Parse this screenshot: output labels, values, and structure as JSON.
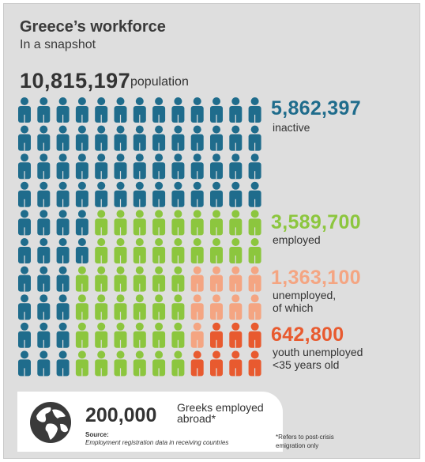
{
  "header": {
    "title": "Greece’s workforce",
    "subtitle": "In a snapshot"
  },
  "population": {
    "value": "10,815,197",
    "label": "population"
  },
  "stats": [
    {
      "value": "5,862,397",
      "label_lines": [
        "inactive"
      ],
      "color": "#1f6c8c"
    },
    {
      "value": "3,589,700",
      "label_lines": [
        "employed"
      ],
      "color": "#8cc63e"
    },
    {
      "value": "1,363,100",
      "label_lines": [
        "unemployed,",
        "of which"
      ],
      "color": "#f4a582"
    },
    {
      "value": "642,800",
      "label_lines": [
        "youth unemployed",
        "<35 years old"
      ],
      "color": "#e85a2f"
    }
  ],
  "pictogram": {
    "rows": 10,
    "columns": 13,
    "legend": {
      "B": "inactive",
      "G": "employed",
      "P": "unemployed",
      "R": "youth unemployed"
    },
    "grid": [
      "BBBBBBBBBBBBB",
      "BBBBBBBBBBBBB",
      "BBBBBBBBBBBBB",
      "BBBBBBBBBBBBB",
      "BBBBGGGGGGGGG",
      "BBBBGGGGGGGGG",
      "BBBGGGGGGPPPP",
      "BBBGGGGGGPPPP",
      "BBBGGGGGGPRRR",
      "BBBGGGGGGRRRR"
    ],
    "colors": {
      "B": "#1f6c8c",
      "G": "#8cc63e",
      "P": "#f4a582",
      "R": "#e85a2f"
    }
  },
  "abroad": {
    "value": "200,000",
    "label_line1": "Greeks employed",
    "label_line2": "abroad*",
    "source_title": "Source:",
    "source_text": "Employment registration data in receiving countries",
    "icon": "globe-icon"
  },
  "footnote": {
    "line1": "*Refers to post-crisis",
    "line2": "emigration only"
  }
}
